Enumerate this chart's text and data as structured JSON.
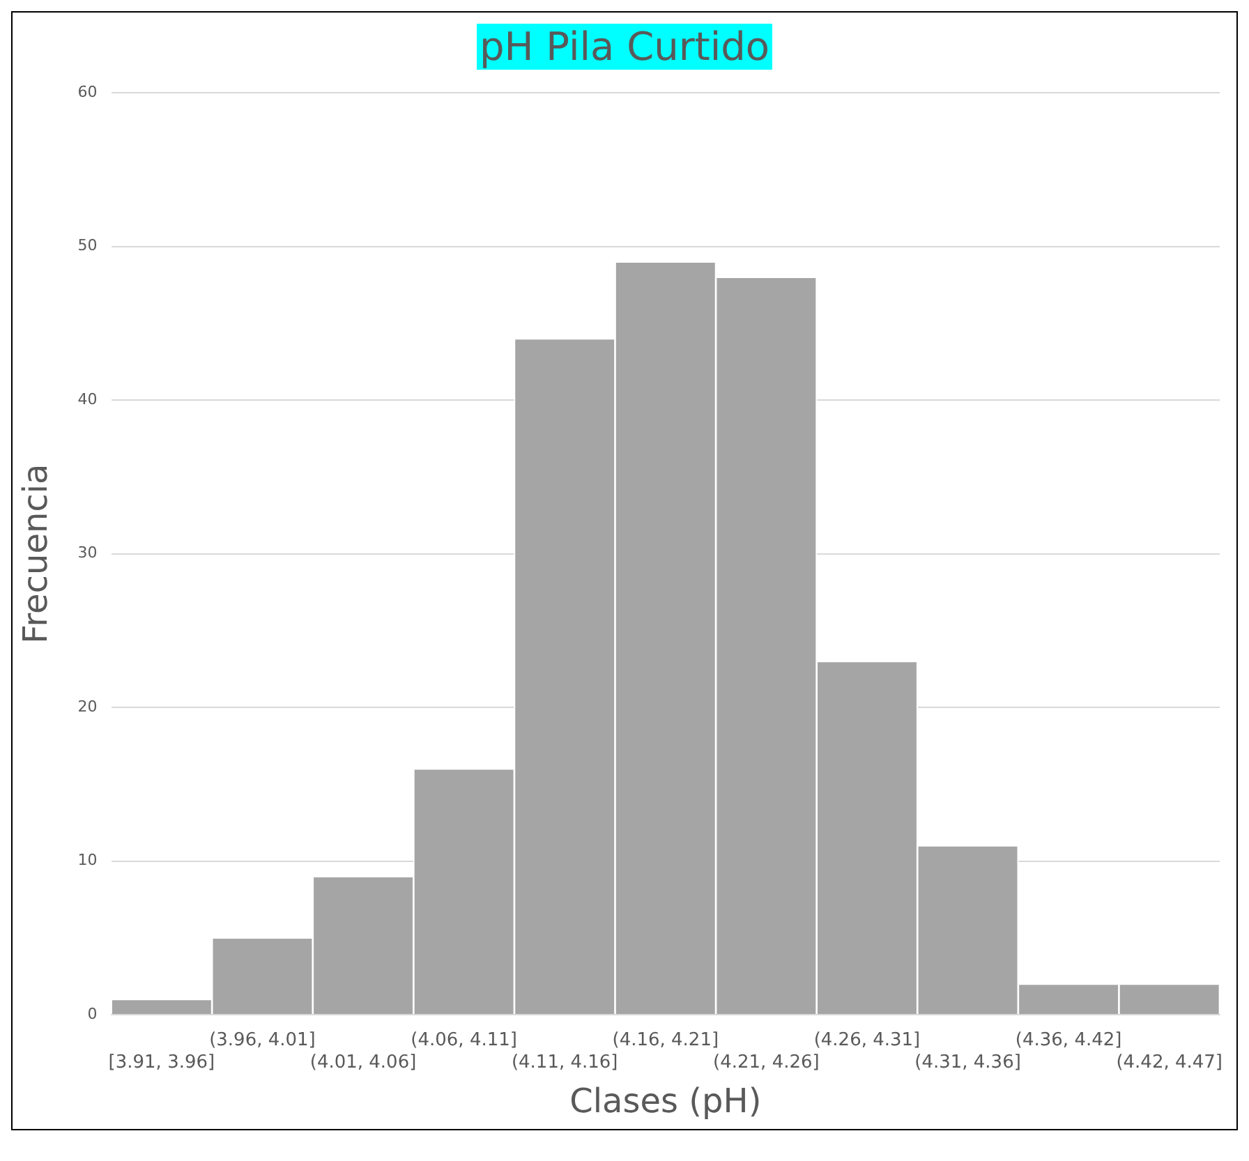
{
  "chart_data": {
    "type": "histogram",
    "title": "pH Pila Curtido",
    "xlabel": "Clases (pH)",
    "ylabel": "Frecuencia",
    "categories": [
      "[3.91, 3.96]",
      "(3.96, 4.01]",
      "(4.01, 4.06]",
      "(4.06, 4.11]",
      "(4.11, 4.16]",
      "(4.16, 4.21]",
      "(4.21, 4.26]",
      "(4.26, 4.31]",
      "(4.31, 4.36]",
      "(4.36, 4.42]",
      "(4.42, 4.47]"
    ],
    "values": [
      1,
      5,
      9,
      16,
      44,
      49,
      48,
      23,
      11,
      2,
      2
    ],
    "color": "#a5a5a5",
    "ylim": [
      0,
      60
    ],
    "yticks": [
      0,
      10,
      20,
      30,
      40,
      50,
      60
    ],
    "grid": "y"
  }
}
